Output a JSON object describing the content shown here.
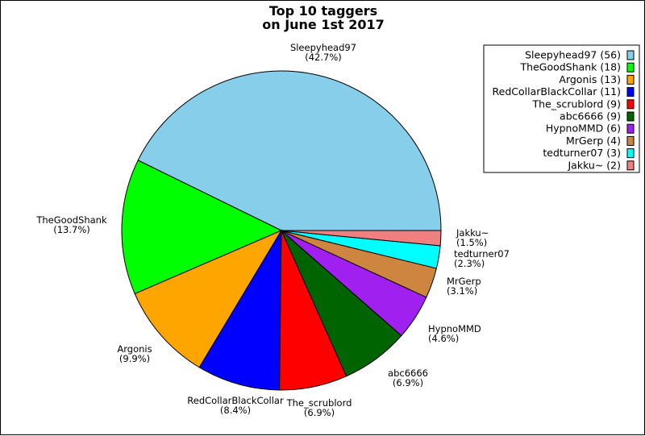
{
  "chart_data": {
    "type": "pie",
    "title_line1": "Top 10 taggers",
    "title_line2": "on June 1st 2017",
    "slices": [
      {
        "name": "Sleepyhead97",
        "value": 56,
        "pct": "(42.7%)",
        "legend": "Sleepyhead97 (56)",
        "color": "#87ceeb"
      },
      {
        "name": "TheGoodShank",
        "value": 18,
        "pct": "(13.7%)",
        "legend": "TheGoodShank (18)",
        "color": "#00ff00"
      },
      {
        "name": "Argonis",
        "value": 13,
        "pct": "(9.9%)",
        "legend": "Argonis (13)",
        "color": "#ffa500"
      },
      {
        "name": "RedCollarBlackCollar",
        "value": 11,
        "pct": "(8.4%)",
        "legend": "RedCollarBlackCollar (11)",
        "color": "#0000ff"
      },
      {
        "name": "The_scrublord",
        "value": 9,
        "pct": "(6.9%)",
        "legend": "The_scrublord (9)",
        "color": "#ff0000"
      },
      {
        "name": "abc6666",
        "value": 9,
        "pct": "(6.9%)",
        "legend": "abc6666 (9)",
        "color": "#006400"
      },
      {
        "name": "HypnoMMD",
        "value": 6,
        "pct": "(4.6%)",
        "legend": "HypnoMMD (6)",
        "color": "#a020f0"
      },
      {
        "name": "MrGerp",
        "value": 4,
        "pct": "(3.1%)",
        "legend": "MrGerp (4)",
        "color": "#cd853f"
      },
      {
        "name": "tedturner07",
        "value": 3,
        "pct": "(2.3%)",
        "legend": "tedturner07 (3)",
        "color": "#00ffff"
      },
      {
        "name": "Jakku~",
        "value": 2,
        "pct": "(1.5%)",
        "legend": "Jakku~ (2)",
        "color": "#f08080"
      }
    ],
    "legend_position": "top-right"
  }
}
